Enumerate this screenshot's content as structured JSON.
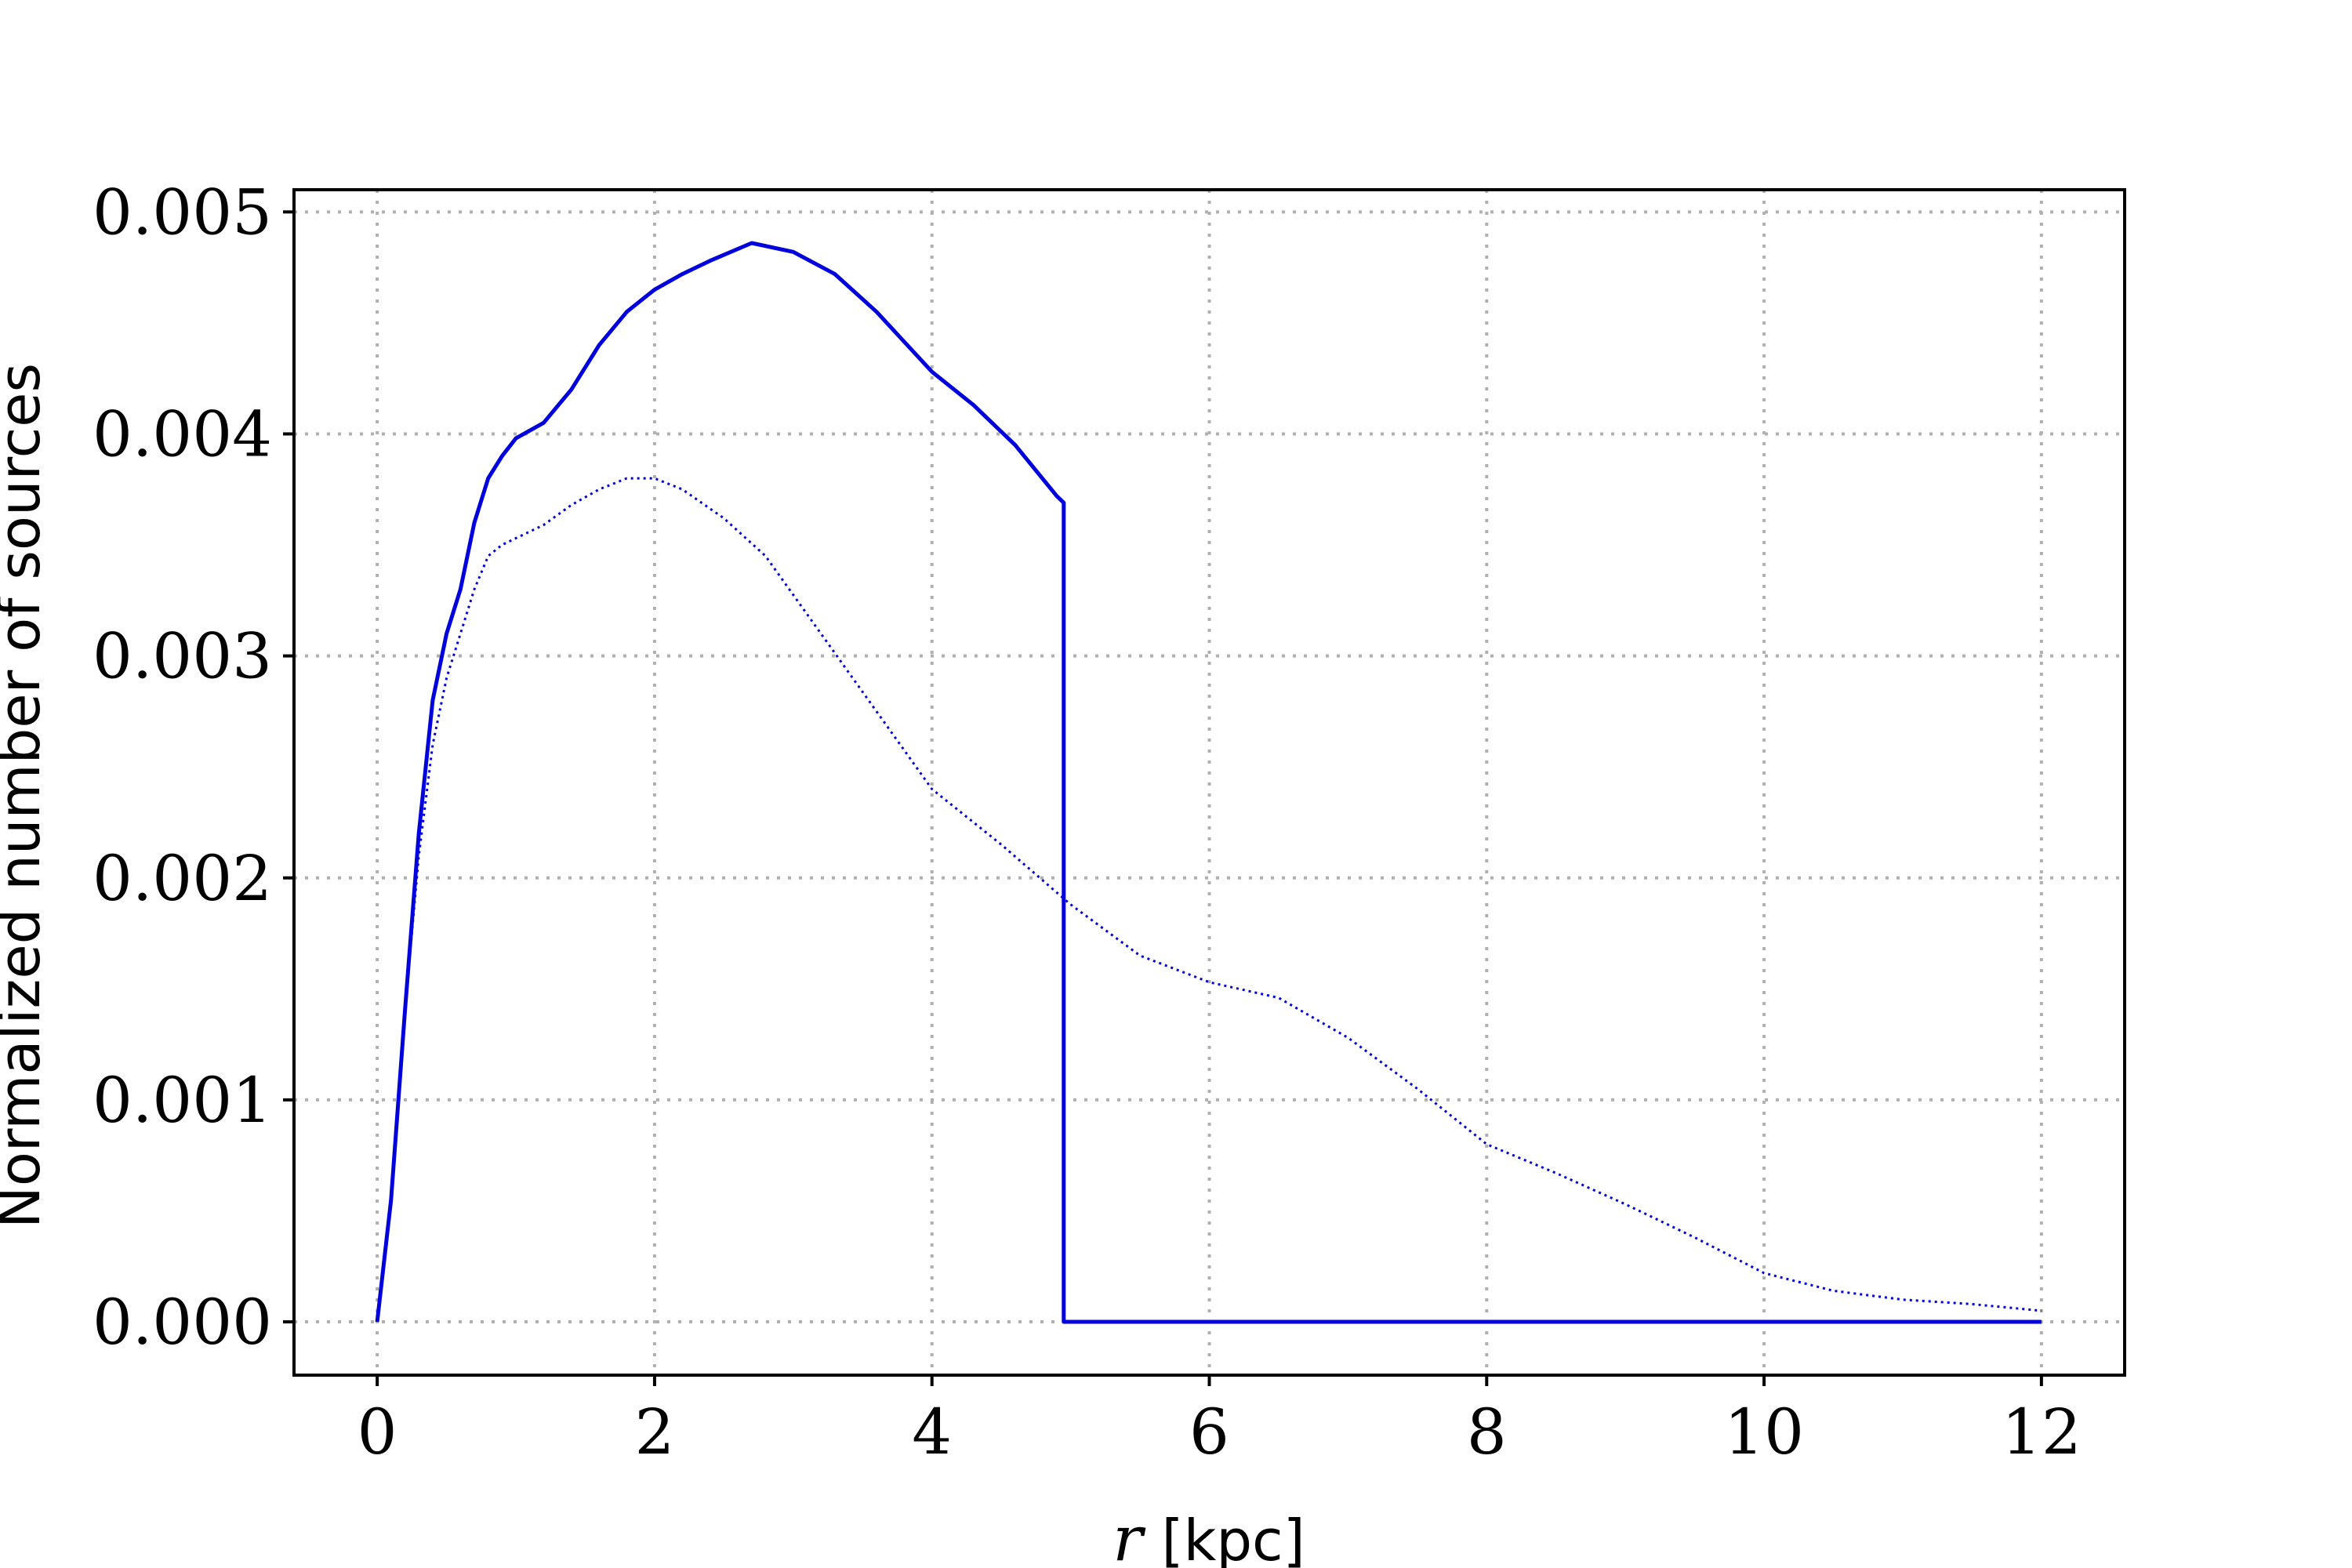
{
  "chart_data": {
    "type": "line",
    "xlabel_var": "r",
    "xlabel_unit": "[kpc]",
    "ylabel": "Normalized number of sources",
    "xlim": [
      -0.6,
      12.6
    ],
    "ylim": [
      -0.00024,
      0.0051
    ],
    "x_ticks": [
      0,
      2,
      4,
      6,
      8,
      10,
      12
    ],
    "x_tick_labels": [
      "0",
      "2",
      "4",
      "6",
      "8",
      "10",
      "12"
    ],
    "y_ticks": [
      0,
      0.001,
      0.002,
      0.003,
      0.004,
      0.005
    ],
    "y_tick_labels": [
      "0.000",
      "0.001",
      "0.002",
      "0.003",
      "0.004",
      "0.005"
    ],
    "grid": true,
    "line_color": "#0000dd",
    "series": [
      {
        "style": "solid",
        "x": [
          0,
          0.1,
          0.2,
          0.3,
          0.4,
          0.5,
          0.6,
          0.7,
          0.8,
          0.9,
          1.0,
          1.2,
          1.4,
          1.6,
          1.8,
          2.0,
          2.2,
          2.4,
          2.7,
          3.0,
          3.3,
          3.6,
          4.0,
          4.3,
          4.6,
          4.9,
          4.95,
          4.95,
          6,
          8,
          10,
          12
        ],
        "y": [
          0,
          0.00055,
          0.0014,
          0.0022,
          0.0028,
          0.0031,
          0.0033,
          0.0036,
          0.0038,
          0.0039,
          0.00398,
          0.00405,
          0.0042,
          0.0044,
          0.00455,
          0.00465,
          0.00472,
          0.00478,
          0.00486,
          0.00482,
          0.00472,
          0.00455,
          0.00428,
          0.00413,
          0.00395,
          0.00372,
          0.00369,
          0,
          0,
          0,
          0,
          0
        ]
      },
      {
        "style": "dotted",
        "x": [
          0,
          0.1,
          0.2,
          0.3,
          0.4,
          0.5,
          0.6,
          0.7,
          0.8,
          0.9,
          1.0,
          1.2,
          1.4,
          1.6,
          1.8,
          2.0,
          2.2,
          2.5,
          2.8,
          3.2,
          3.6,
          4.0,
          4.5,
          5.0,
          5.5,
          6.0,
          6.5,
          7.0,
          7.5,
          8.0,
          8.5,
          9.0,
          9.5,
          10.0,
          10.5,
          11.0,
          11.5,
          12.0
        ],
        "y": [
          0,
          0.00055,
          0.0014,
          0.0021,
          0.0026,
          0.0029,
          0.0031,
          0.0033,
          0.00345,
          0.0035,
          0.00353,
          0.00359,
          0.00368,
          0.00375,
          0.0038,
          0.0038,
          0.00375,
          0.00362,
          0.00345,
          0.0031,
          0.00275,
          0.0024,
          0.00215,
          0.00188,
          0.00165,
          0.00153,
          0.00146,
          0.00128,
          0.00105,
          0.0008,
          0.00067,
          0.00053,
          0.00038,
          0.00022,
          0.00014,
          0.0001,
          8e-05,
          5e-05
        ]
      }
    ]
  }
}
